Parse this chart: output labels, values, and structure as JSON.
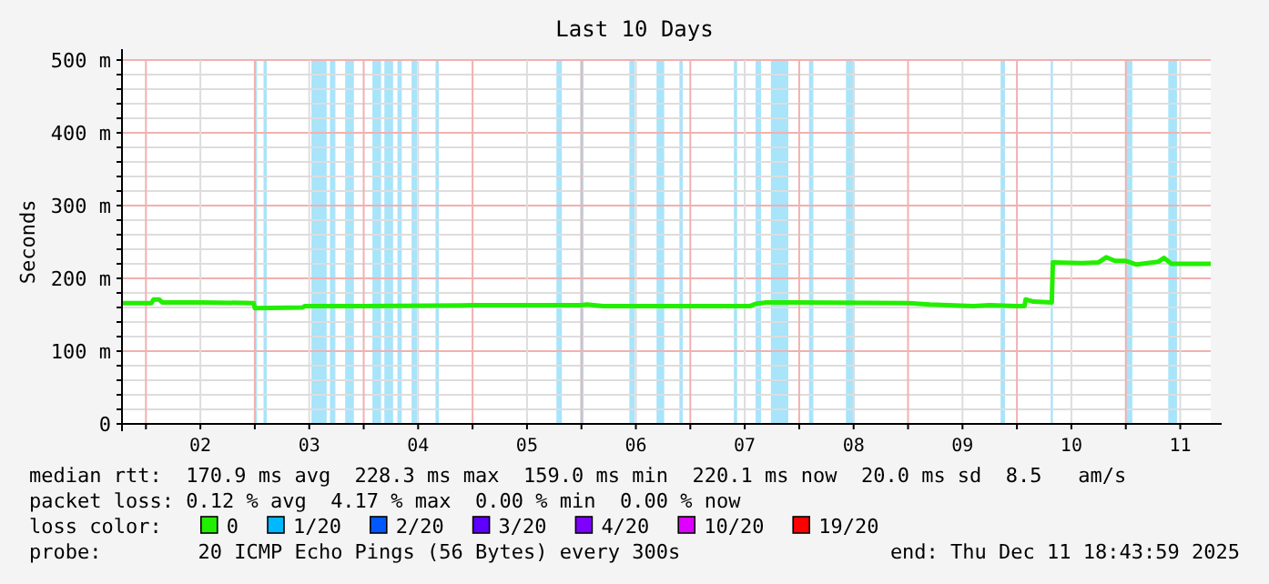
{
  "chart_data": {
    "type": "line",
    "title": "Last 10 Days",
    "ylabel": "Seconds",
    "legend_title": "loss color:",
    "legend": "bottom",
    "grid": true,
    "xlim": [
      1.78,
      11.78
    ],
    "xticks": [
      {
        "value": 2,
        "label": null
      },
      {
        "value": 2.5,
        "label": "02"
      },
      {
        "value": 3,
        "label": null
      },
      {
        "value": 3.5,
        "label": "03"
      },
      {
        "value": 4,
        "label": null
      },
      {
        "value": 4.5,
        "label": "04"
      },
      {
        "value": 5,
        "label": null
      },
      {
        "value": 5.5,
        "label": "05"
      },
      {
        "value": 6,
        "label": null
      },
      {
        "value": 6.5,
        "label": "06"
      },
      {
        "value": 7,
        "label": null
      },
      {
        "value": 7.5,
        "label": "07"
      },
      {
        "value": 8,
        "label": null
      },
      {
        "value": 8.5,
        "label": "08"
      },
      {
        "value": 9,
        "label": null
      },
      {
        "value": 9.5,
        "label": "09"
      },
      {
        "value": 10,
        "label": null
      },
      {
        "value": 10.5,
        "label": "10"
      },
      {
        "value": 11,
        "label": null
      },
      {
        "value": 11.5,
        "label": "11"
      }
    ],
    "ylim": [
      0,
      500
    ],
    "yticks": [
      {
        "value": 0,
        "label": "0"
      },
      {
        "value": 20,
        "label": null
      },
      {
        "value": 40,
        "label": null
      },
      {
        "value": 60,
        "label": null
      },
      {
        "value": 80,
        "label": null
      },
      {
        "value": 100,
        "label": "100 m"
      },
      {
        "value": 120,
        "label": null
      },
      {
        "value": 140,
        "label": null
      },
      {
        "value": 160,
        "label": null
      },
      {
        "value": 180,
        "label": null
      },
      {
        "value": 200,
        "label": "200 m"
      },
      {
        "value": 220,
        "label": null
      },
      {
        "value": 240,
        "label": null
      },
      {
        "value": 260,
        "label": null
      },
      {
        "value": 280,
        "label": null
      },
      {
        "value": 300,
        "label": "300 m"
      },
      {
        "value": 320,
        "label": null
      },
      {
        "value": 340,
        "label": null
      },
      {
        "value": 360,
        "label": null
      },
      {
        "value": 380,
        "label": null
      },
      {
        "value": 400,
        "label": "400 m"
      },
      {
        "value": 420,
        "label": null
      },
      {
        "value": 440,
        "label": null
      },
      {
        "value": 460,
        "label": null
      },
      {
        "value": 480,
        "label": null
      },
      {
        "value": 500,
        "label": "500 m"
      }
    ],
    "x": [
      1.78,
      2.0,
      2.05,
      2.07,
      2.12,
      2.15,
      2.5,
      2.99,
      3.0,
      3.44,
      3.46,
      4.0,
      5.0,
      6.0,
      6.05,
      6.2,
      7.0,
      7.55,
      7.6,
      7.7,
      8.0,
      9.0,
      9.2,
      9.6,
      9.75,
      10.0,
      10.07,
      10.08,
      10.15,
      10.32,
      10.33,
      10.6,
      10.75,
      10.82,
      10.9,
      11.0,
      11.1,
      11.3,
      11.35,
      11.42,
      11.78
    ],
    "series": [
      {
        "name": "0",
        "color": "#22ee00",
        "values": [
          166,
          166,
          166,
          171,
          171,
          167,
          167,
          166,
          159,
          160,
          162,
          162,
          163,
          163,
          164,
          162,
          162,
          162,
          165,
          167,
          167,
          166,
          164,
          162,
          163,
          162,
          162,
          171,
          168,
          167,
          222,
          221,
          222,
          229,
          224,
          224,
          219,
          223,
          228,
          220,
          220
        ]
      }
    ],
    "bands": [
      {
        "axis": "x",
        "from": 3.0,
        "to": 3.02,
        "color": "#a8e4fa"
      },
      {
        "axis": "x",
        "from": 3.08,
        "to": 3.11,
        "color": "#a8e4fa"
      },
      {
        "axis": "x",
        "from": 3.52,
        "to": 3.66,
        "color": "#a8e4fa"
      },
      {
        "axis": "x",
        "from": 3.69,
        "to": 3.74,
        "color": "#a8e4fa"
      },
      {
        "axis": "x",
        "from": 3.83,
        "to": 3.91,
        "color": "#a8e4fa"
      },
      {
        "axis": "x",
        "from": 4.08,
        "to": 4.16,
        "color": "#a8e4fa"
      },
      {
        "axis": "x",
        "from": 4.19,
        "to": 4.27,
        "color": "#a8e4fa"
      },
      {
        "axis": "x",
        "from": 4.31,
        "to": 4.35,
        "color": "#a8e4fa"
      },
      {
        "axis": "x",
        "from": 4.44,
        "to": 4.49,
        "color": "#a8e4fa"
      },
      {
        "axis": "x",
        "from": 4.66,
        "to": 4.69,
        "color": "#a8e4fa"
      },
      {
        "axis": "x",
        "from": 5.77,
        "to": 5.82,
        "color": "#a8e4fa"
      },
      {
        "axis": "x",
        "from": 5.99,
        "to": 6.02,
        "color": "#a8e4fa"
      },
      {
        "axis": "x",
        "from": 6.44,
        "to": 6.49,
        "color": "#a8e4fa"
      },
      {
        "axis": "x",
        "from": 6.69,
        "to": 6.76,
        "color": "#a8e4fa"
      },
      {
        "axis": "x",
        "from": 6.9,
        "to": 6.93,
        "color": "#a8e4fa"
      },
      {
        "axis": "x",
        "from": 7.4,
        "to": 7.43,
        "color": "#a8e4fa"
      },
      {
        "axis": "x",
        "from": 7.6,
        "to": 7.65,
        "color": "#a8e4fa"
      },
      {
        "axis": "x",
        "from": 7.74,
        "to": 7.9,
        "color": "#a8e4fa"
      },
      {
        "axis": "x",
        "from": 8.09,
        "to": 8.13,
        "color": "#a8e4fa"
      },
      {
        "axis": "x",
        "from": 8.43,
        "to": 8.51,
        "color": "#a8e4fa"
      },
      {
        "axis": "x",
        "from": 9.85,
        "to": 9.89,
        "color": "#a8e4fa"
      },
      {
        "axis": "x",
        "from": 10.31,
        "to": 10.33,
        "color": "#a8e4fa"
      },
      {
        "axis": "x",
        "from": 11.0,
        "to": 11.06,
        "color": "#a8e4fa"
      },
      {
        "axis": "x",
        "from": 11.39,
        "to": 11.47,
        "color": "#a8e4fa"
      }
    ],
    "annotations": [
      "median rtt:  170.9 ms avg  228.3 ms max  159.0 ms min  220.1 ms now  20.0 ms sd  8.5   am/s",
      "packet loss: 0.12 % avg  4.17 % max  0.00 % min  0.00 % now",
      "probe:        20 ICMP Echo Pings (56 Bytes) every 300s",
      "end: Thu Dec 11 18:43:59 2025",
      "1/20",
      "2/20",
      "3/20",
      "4/20",
      "10/20",
      "19/20"
    ]
  }
}
